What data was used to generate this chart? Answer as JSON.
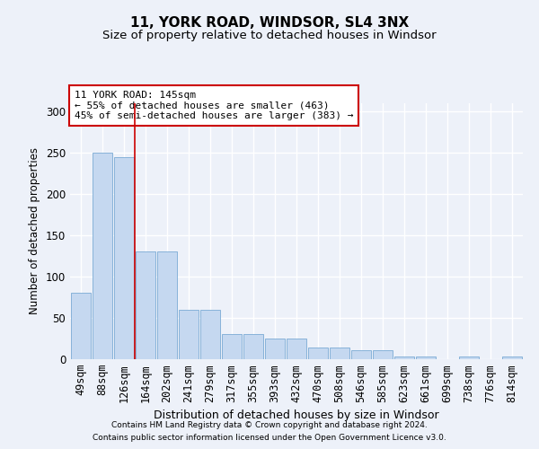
{
  "title1": "11, YORK ROAD, WINDSOR, SL4 3NX",
  "title2": "Size of property relative to detached houses in Windsor",
  "xlabel": "Distribution of detached houses by size in Windsor",
  "ylabel": "Number of detached properties",
  "categories": [
    "49sqm",
    "88sqm",
    "126sqm",
    "164sqm",
    "202sqm",
    "241sqm",
    "279sqm",
    "317sqm",
    "355sqm",
    "393sqm",
    "432sqm",
    "470sqm",
    "508sqm",
    "546sqm",
    "585sqm",
    "623sqm",
    "661sqm",
    "699sqm",
    "738sqm",
    "776sqm",
    "814sqm"
  ],
  "bar_values": [
    80,
    250,
    245,
    130,
    130,
    60,
    60,
    31,
    31,
    25,
    25,
    14,
    14,
    11,
    11,
    3,
    3,
    0,
    3,
    0,
    3
  ],
  "bar_color": "#c5d8f0",
  "bar_edgecolor": "#7aaad4",
  "ref_line_x": 2.5,
  "ref_line_color": "#cc0000",
  "annotation_text": "11 YORK ROAD: 145sqm\n← 55% of detached houses are smaller (463)\n45% of semi-detached houses are larger (383) →",
  "annotation_box_color": "#cc0000",
  "footer1": "Contains HM Land Registry data © Crown copyright and database right 2024.",
  "footer2": "Contains public sector information licensed under the Open Government Licence v3.0.",
  "ylim": [
    0,
    310
  ],
  "yticks": [
    0,
    50,
    100,
    150,
    200,
    250,
    300
  ],
  "background_color": "#edf1f9",
  "grid_color": "#ffffff",
  "title_fontsize": 11,
  "subtitle_fontsize": 9.5,
  "ylabel_text": "Number of detached properties"
}
